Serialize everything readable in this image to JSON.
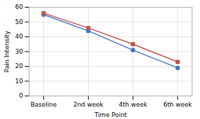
{
  "chart_data": {
    "type": "line",
    "categories": [
      "Baseline",
      "2nd week",
      "4th week",
      "6th week"
    ],
    "series": [
      {
        "color": "#4472C4",
        "marker": "circle",
        "values": [
          55,
          44,
          31,
          19
        ]
      },
      {
        "color": "#C0504D",
        "marker": "square",
        "values": [
          56,
          46,
          35,
          23
        ]
      }
    ],
    "xlabel": "Time Point",
    "ylabel": "Pain Intensity",
    "ylim": [
      0,
      60
    ],
    "yticks": [
      0,
      10,
      20,
      30,
      40,
      50,
      60
    ],
    "grid": true
  }
}
